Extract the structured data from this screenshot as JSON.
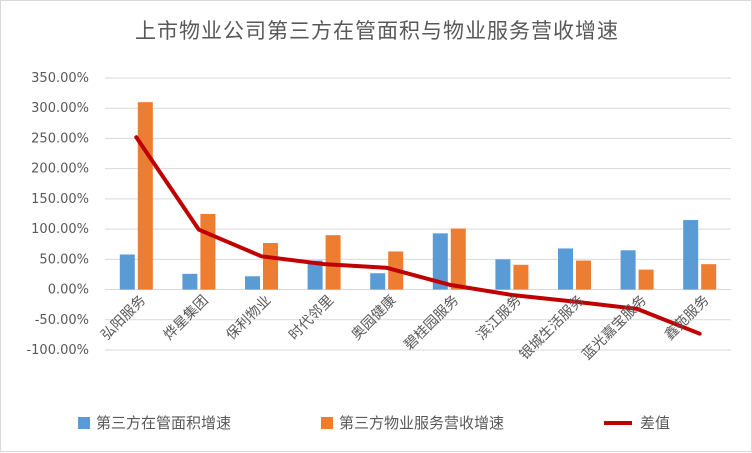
{
  "chart_data": {
    "type": "bar",
    "title": "上市物业公司第三方在管面积与物业服务营收增速",
    "categories": [
      "弘阳服务",
      "烨星集团",
      "保利物业",
      "时代邻里",
      "奥园健康",
      "碧桂园服务",
      "滨江服务",
      "银城生活服务",
      "蓝光嘉宝服务",
      "鑫苑服务"
    ],
    "series": [
      {
        "name": "第三方在管面积增速",
        "type": "bar",
        "color": "#5b9bd5",
        "values": [
          58,
          26,
          22,
          48,
          27,
          93,
          50,
          68,
          65,
          115
        ]
      },
      {
        "name": "第三方物业服务营收增速",
        "type": "bar",
        "color": "#ed7d31",
        "values": [
          310,
          125,
          77,
          90,
          63,
          101,
          41,
          48,
          33,
          42
        ]
      },
      {
        "name": "差值",
        "type": "line",
        "color": "#c00000",
        "values": [
          252,
          99,
          55,
          42,
          36,
          8,
          -9,
          -20,
          -32,
          -73
        ]
      }
    ],
    "ylim": [
      -100,
      350
    ],
    "yticks": [
      -100,
      -50,
      0,
      50,
      100,
      150,
      200,
      250,
      300,
      350
    ],
    "ytick_labels": [
      "-100.00%",
      "-50.00%",
      "0.00%",
      "50.00%",
      "100.00%",
      "150.00%",
      "200.00%",
      "250.00%",
      "300.00%",
      "350.00%"
    ],
    "legend_position": "bottom",
    "grid": true,
    "xlabel": "",
    "ylabel": ""
  }
}
